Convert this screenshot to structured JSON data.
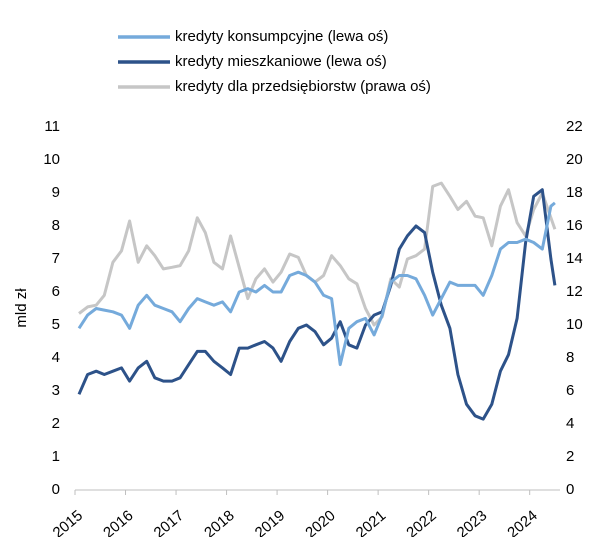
{
  "chart_data": {
    "type": "line",
    "y_label": "mld zł",
    "x": [
      2015.08,
      2015.25,
      2015.42,
      2015.58,
      2015.75,
      2015.92,
      2016.08,
      2016.25,
      2016.42,
      2016.58,
      2016.75,
      2016.92,
      2017.08,
      2017.25,
      2017.42,
      2017.58,
      2017.75,
      2017.92,
      2018.08,
      2018.25,
      2018.42,
      2018.58,
      2018.75,
      2018.92,
      2019.08,
      2019.25,
      2019.42,
      2019.58,
      2019.75,
      2019.92,
      2020.08,
      2020.25,
      2020.42,
      2020.58,
      2020.75,
      2020.92,
      2021.08,
      2021.25,
      2021.42,
      2021.58,
      2021.75,
      2021.92,
      2022.08,
      2022.25,
      2022.42,
      2022.58,
      2022.75,
      2022.92,
      2023.08,
      2023.25,
      2023.42,
      2023.58,
      2023.75,
      2023.92,
      2024.08,
      2024.25,
      2024.42,
      2024.5
    ],
    "series": [
      {
        "name": "kredyty konsumpcyjne (lewa oś)",
        "color": "#75aadb",
        "values": [
          4.9,
          5.3,
          5.5,
          5.45,
          5.4,
          5.3,
          4.9,
          5.6,
          5.9,
          5.6,
          5.5,
          5.4,
          5.1,
          5.5,
          5.8,
          5.7,
          5.6,
          5.7,
          5.4,
          6.0,
          6.1,
          6.0,
          6.2,
          6.0,
          6.0,
          6.5,
          6.6,
          6.5,
          6.3,
          5.9,
          5.8,
          3.8,
          4.9,
          5.1,
          5.2,
          4.7,
          5.3,
          6.3,
          6.5,
          6.5,
          6.4,
          5.9,
          5.3,
          5.8,
          6.3,
          6.2,
          6.2,
          6.2,
          5.9,
          6.5,
          7.3,
          7.5,
          7.5,
          7.6,
          7.5,
          7.3,
          8.6,
          8.7
        ]
      },
      {
        "name": "kredyty mieszkaniowe (lewa oś)",
        "color": "#2d5289",
        "values": [
          2.9,
          3.5,
          3.6,
          3.5,
          3.6,
          3.7,
          3.3,
          3.7,
          3.9,
          3.4,
          3.3,
          3.3,
          3.4,
          3.8,
          4.2,
          4.2,
          3.9,
          3.7,
          3.5,
          4.3,
          4.3,
          4.4,
          4.5,
          4.3,
          3.9,
          4.5,
          4.9,
          5.0,
          4.8,
          4.4,
          4.6,
          5.1,
          4.4,
          4.3,
          5.0,
          5.3,
          5.4,
          6.2,
          7.3,
          7.7,
          8.0,
          7.8,
          6.6,
          5.6,
          4.9,
          3.5,
          2.6,
          2.25,
          2.15,
          2.6,
          3.6,
          4.1,
          5.2,
          7.5,
          8.9,
          9.1,
          7.0,
          6.2
        ]
      },
      {
        "name": "kredyty dla przedsiębiorstw (prawa oś)",
        "color": "#c6c6c6",
        "axis": "y2",
        "values": [
          10.7,
          11.1,
          11.2,
          11.8,
          13.8,
          14.5,
          16.3,
          13.8,
          14.8,
          14.2,
          13.4,
          13.5,
          13.6,
          14.5,
          16.5,
          15.6,
          13.8,
          13.4,
          15.4,
          13.5,
          11.6,
          12.8,
          13.4,
          12.6,
          13.2,
          14.3,
          14.1,
          13.0,
          12.6,
          13.0,
          14.2,
          13.6,
          12.8,
          12.5,
          11.0,
          10.0,
          10.5,
          12.8,
          12.3,
          14.0,
          14.2,
          14.6,
          18.4,
          18.6,
          17.8,
          17.0,
          17.5,
          16.6,
          16.5,
          14.8,
          17.2,
          18.2,
          16.2,
          15.4,
          17.0,
          18.0,
          16.5,
          15.8
        ]
      }
    ],
    "xlim": [
      2015,
      2024.6
    ],
    "xticks": [
      2015,
      2016,
      2017,
      2018,
      2019,
      2020,
      2021,
      2022,
      2023,
      2024
    ],
    "ylim": [
      0,
      11
    ],
    "yticks": [
      0,
      1,
      2,
      3,
      4,
      5,
      6,
      7,
      8,
      9,
      10,
      11
    ],
    "y2lim": [
      0,
      22
    ],
    "y2ticks": [
      0,
      2,
      4,
      6,
      8,
      10,
      12,
      14,
      16,
      18,
      20,
      22
    ]
  }
}
